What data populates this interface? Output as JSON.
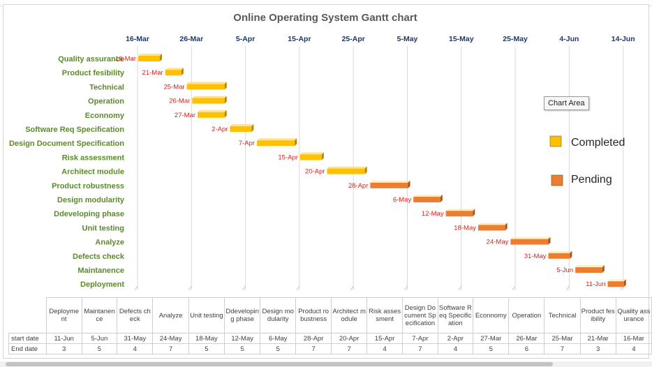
{
  "chart_data": {
    "type": "gantt",
    "title": "Online Operating System Gantt chart",
    "date_axis_labels": [
      "16-Mar",
      "26-Mar",
      "5-Apr",
      "15-Apr",
      "25-Apr",
      "5-May",
      "15-May",
      "25-May",
      "4-Jun",
      "14-Jun"
    ],
    "axis_range_days": [
      "16-Mar",
      "17-Jun"
    ],
    "tasks": [
      {
        "name": "Quality assurance",
        "start": "16-Mar",
        "duration": 4,
        "status": "Completed",
        "start_day": 0
      },
      {
        "name": "Product fesibility",
        "start": "21-Mar",
        "duration": 3,
        "status": "Completed",
        "start_day": 5
      },
      {
        "name": "Technical",
        "start": "25-Mar",
        "duration": 7,
        "status": "Completed",
        "start_day": 9
      },
      {
        "name": "Operation",
        "start": "26-Mar",
        "duration": 6,
        "status": "Completed",
        "start_day": 10
      },
      {
        "name": "Econnomy",
        "start": "27-Mar",
        "duration": 5,
        "status": "Completed",
        "start_day": 11
      },
      {
        "name": "Software Req Specification",
        "start": "2-Apr",
        "duration": 4,
        "status": "Completed",
        "start_day": 17
      },
      {
        "name": "Design Document Specification",
        "start": "7-Apr",
        "duration": 7,
        "status": "Completed",
        "start_day": 22
      },
      {
        "name": "Risk assessment",
        "start": "15-Apr",
        "duration": 4,
        "status": "Completed",
        "start_day": 30
      },
      {
        "name": "Architect module",
        "start": "20-Apr",
        "duration": 7,
        "status": "Completed",
        "start_day": 35
      },
      {
        "name": "Product robustness",
        "start": "28-Apr",
        "duration": 7,
        "status": "Pending",
        "start_day": 43
      },
      {
        "name": "Design modularity",
        "start": "6-May",
        "duration": 5,
        "status": "Pending",
        "start_day": 51
      },
      {
        "name": "Ddeveloping phase",
        "start": "12-May",
        "duration": 5,
        "status": "Pending",
        "start_day": 57
      },
      {
        "name": "Unit testing",
        "start": "18-May",
        "duration": 5,
        "status": "Pending",
        "start_day": 63
      },
      {
        "name": "Analyze",
        "start": "24-May",
        "duration": 7,
        "status": "Pending",
        "start_day": 69
      },
      {
        "name": "Defects check",
        "start": "31-May",
        "duration": 4,
        "status": "Pending",
        "start_day": 76
      },
      {
        "name": "Maintanence",
        "start": "5-Jun",
        "duration": 5,
        "status": "Pending",
        "start_day": 81
      },
      {
        "name": "Deployment",
        "start": "11-Jun",
        "duration": 3,
        "status": "Pending",
        "start_day": 87
      }
    ],
    "legend": [
      {
        "label": "Completed",
        "color": "#ffc000"
      },
      {
        "label": "Pending",
        "color": "#ed7d31"
      }
    ],
    "legend_position": "right"
  },
  "tooltip": "Chart Area",
  "table": {
    "columns": [
      "Deployment",
      "Maintanence",
      "Defects check",
      "Analyze",
      "Unit testing",
      "Ddeveloping phase",
      "Design modularity",
      "Product robustness",
      "Architect module",
      "Risk assessment",
      "Design Document Specification",
      "Software Req Specification",
      "Econnomy",
      "Operation",
      "Technical",
      "Product fesibility",
      "Quality assurance"
    ],
    "row_labels": [
      "start date",
      "End date"
    ],
    "start_dates": [
      "11-Jun",
      "5-Jun",
      "31-May",
      "24-May",
      "18-May",
      "12-May",
      "6-May",
      "28-Apr",
      "20-Apr",
      "15-Apr",
      "7-Apr",
      "2-Apr",
      "27-Mar",
      "26-Mar",
      "25-Mar",
      "21-Mar",
      "16-Mar"
    ],
    "end_dates": [
      "3",
      "5",
      "4",
      "7",
      "5",
      "5",
      "5",
      "7",
      "7",
      "4",
      "7",
      "4",
      "5",
      "6",
      "7",
      "3",
      "4"
    ]
  }
}
